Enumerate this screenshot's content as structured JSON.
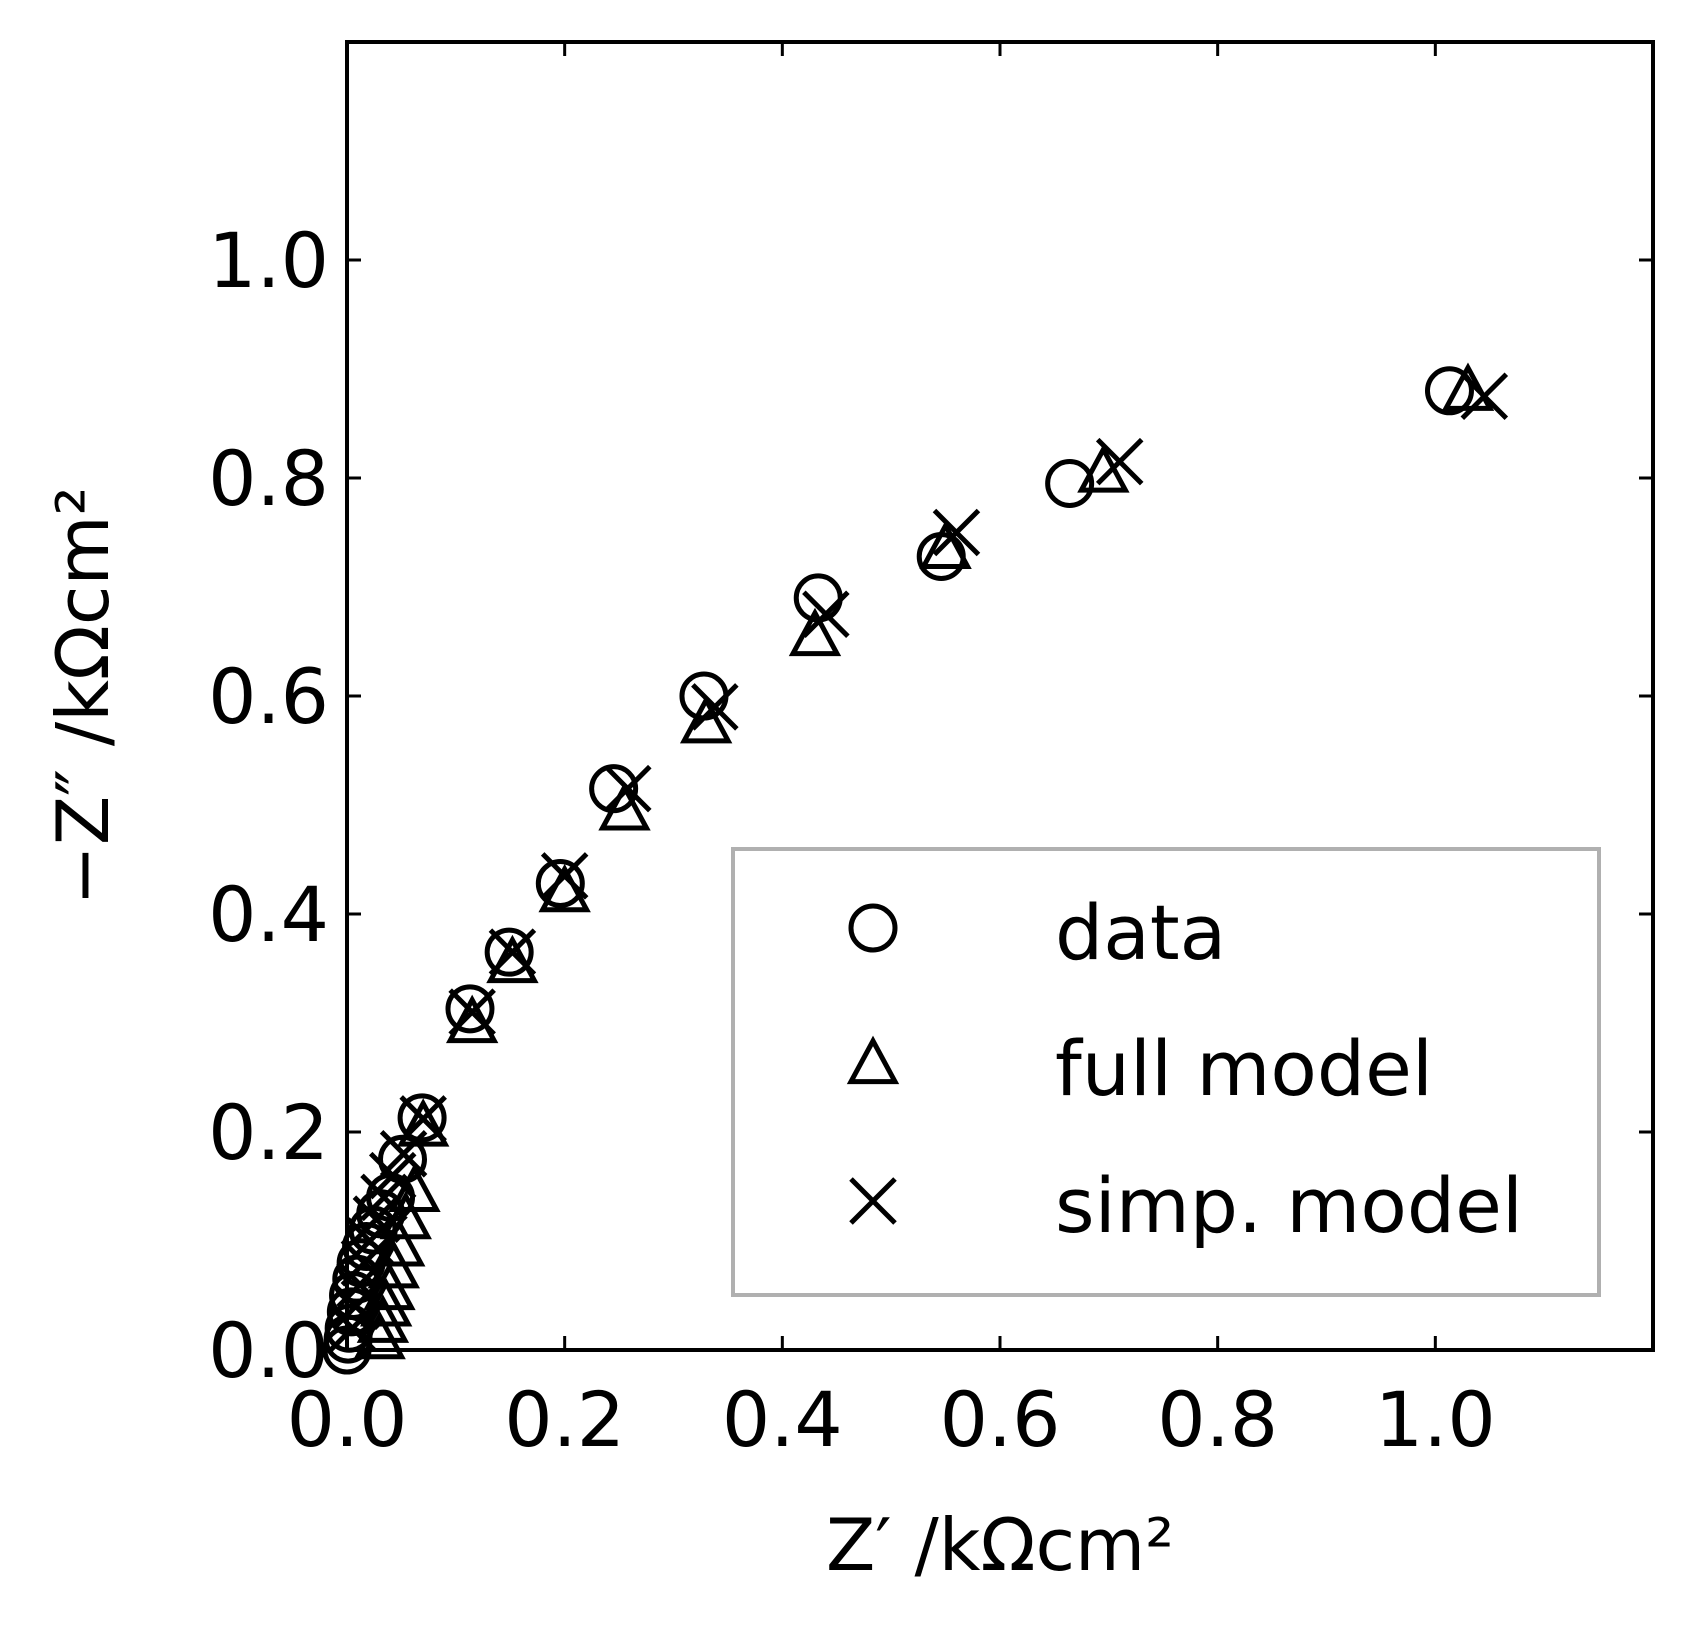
{
  "chart_data": {
    "type": "scatter",
    "xlabel": "Z′ /kΩcm²",
    "ylabel": "−Z″ /kΩcm²",
    "xlim": [
      0,
      1.2
    ],
    "ylim": [
      0,
      1.2
    ],
    "x_ticks": [
      0.0,
      0.2,
      0.4,
      0.6,
      0.8,
      1.0
    ],
    "y_ticks": [
      0.0,
      0.2,
      0.4,
      0.6,
      0.8,
      1.0
    ],
    "x_tick_labels": [
      "0.0",
      "0.2",
      "0.4",
      "0.6",
      "0.8",
      "1.0"
    ],
    "y_tick_labels": [
      "0.0",
      "0.2",
      "0.4",
      "0.6",
      "0.8",
      "1.0"
    ],
    "grid": false,
    "legend_position": "lower-right",
    "series": [
      {
        "name": "data",
        "marker": "circle",
        "x": [
          0.0,
          0.001,
          0.002,
          0.004,
          0.006,
          0.009,
          0.013,
          0.018,
          0.024,
          0.031,
          0.04,
          0.051,
          0.069,
          0.113,
          0.149,
          0.196,
          0.245,
          0.328,
          0.433,
          0.546,
          0.664,
          1.013
        ],
        "y": [
          0.0,
          0.01,
          0.02,
          0.035,
          0.05,
          0.065,
          0.08,
          0.095,
          0.11,
          0.125,
          0.14,
          0.175,
          0.213,
          0.313,
          0.365,
          0.428,
          0.515,
          0.6,
          0.69,
          0.728,
          0.795,
          0.88
        ]
      },
      {
        "name": "full model",
        "marker": "triangle",
        "x": [
          0.03,
          0.033,
          0.036,
          0.039,
          0.043,
          0.048,
          0.054,
          0.062,
          0.07,
          0.115,
          0.152,
          0.2,
          0.255,
          0.33,
          0.43,
          0.55,
          0.695,
          1.03
        ],
        "y": [
          0.01,
          0.025,
          0.04,
          0.055,
          0.075,
          0.095,
          0.12,
          0.145,
          0.205,
          0.3,
          0.355,
          0.42,
          0.495,
          0.575,
          0.655,
          0.735,
          0.805,
          0.88
        ]
      },
      {
        "name": "simp. model",
        "marker": "x",
        "x": [
          0.005,
          0.008,
          0.012,
          0.016,
          0.021,
          0.027,
          0.034,
          0.042,
          0.052,
          0.07,
          0.115,
          0.152,
          0.2,
          0.258,
          0.338,
          0.44,
          0.56,
          0.71,
          1.045
        ],
        "y": [
          0.02,
          0.04,
          0.06,
          0.08,
          0.1,
          0.12,
          0.14,
          0.16,
          0.18,
          0.212,
          0.31,
          0.365,
          0.435,
          0.515,
          0.59,
          0.675,
          0.75,
          0.815,
          0.875
        ]
      }
    ]
  }
}
